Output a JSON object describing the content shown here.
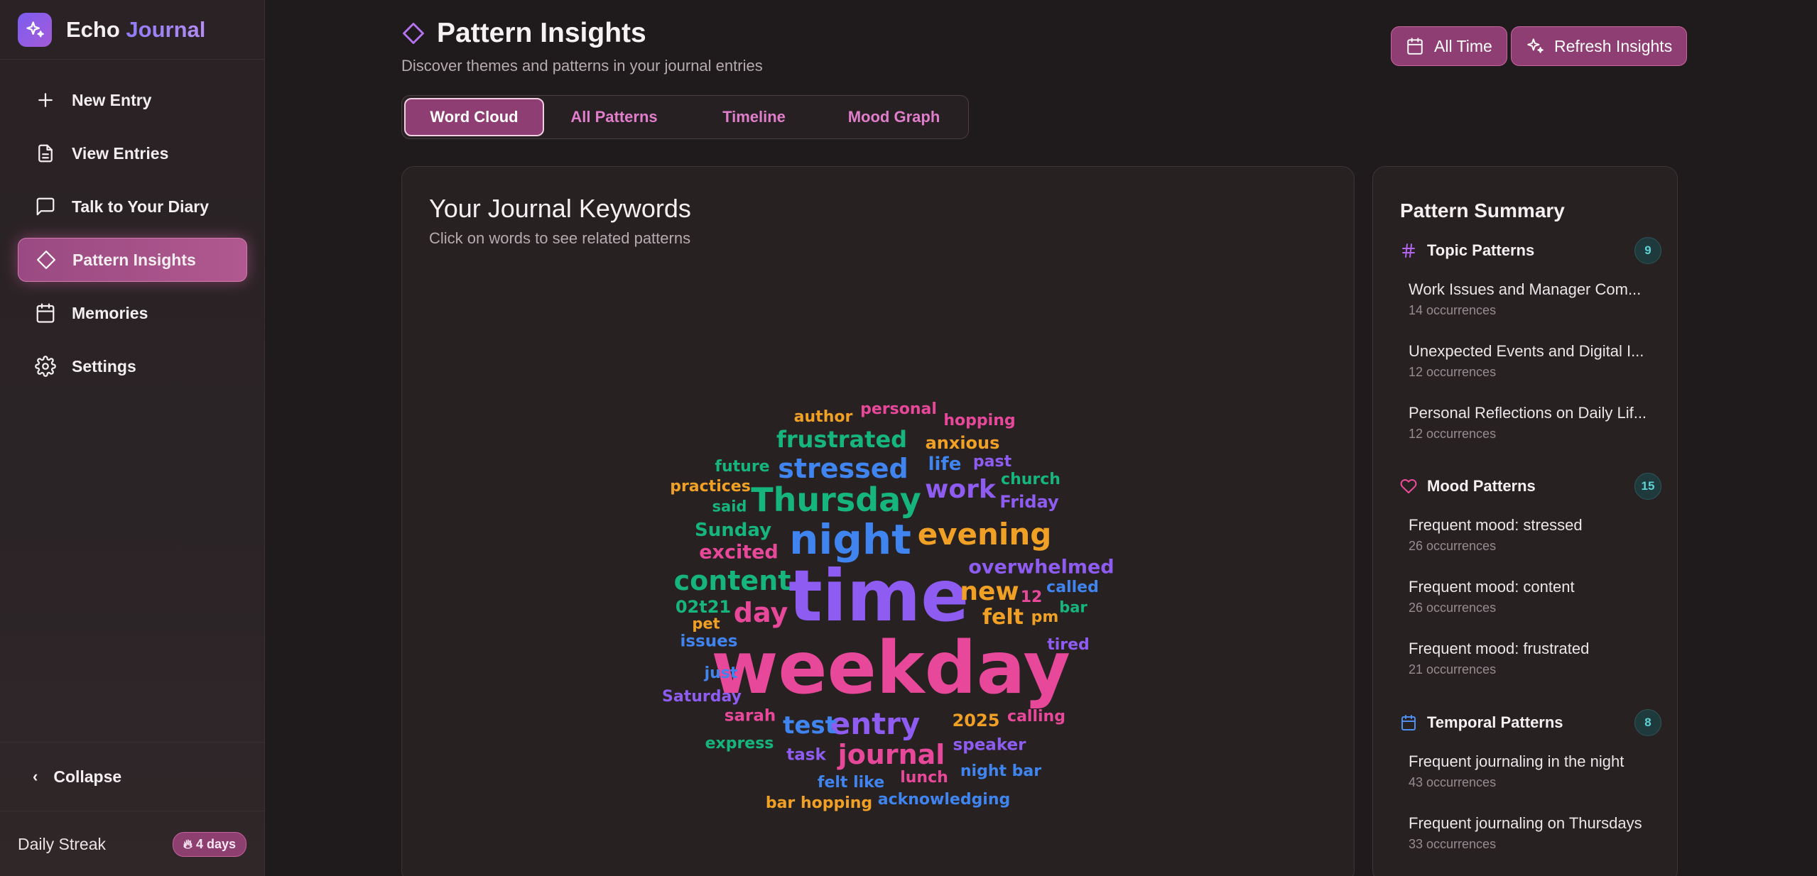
{
  "brand": {
    "name_primary": "Echo",
    "name_accent": "Journal"
  },
  "nav": {
    "items": [
      {
        "label": "New Entry",
        "icon": "plus-icon"
      },
      {
        "label": "View Entries",
        "icon": "file-text-icon"
      },
      {
        "label": "Talk to Your Diary",
        "icon": "chat-bubble-icon"
      },
      {
        "label": "Pattern Insights",
        "icon": "diamond-icon",
        "active": true
      },
      {
        "label": "Memories",
        "icon": "calendar-icon"
      },
      {
        "label": "Settings",
        "icon": "gear-icon"
      }
    ],
    "collapse_label": "Collapse",
    "streak_label": "Daily Streak",
    "streak_value": "4 days"
  },
  "header": {
    "title": "Pattern Insights",
    "subtitle": "Discover themes and patterns in your journal entries",
    "all_time_label": "All Time",
    "refresh_label": "Refresh Insights"
  },
  "tabs": [
    {
      "label": "Word Cloud",
      "active": true
    },
    {
      "label": "All Patterns"
    },
    {
      "label": "Timeline"
    },
    {
      "label": "Mood Graph"
    }
  ],
  "keywords": {
    "title": "Your Journal Keywords",
    "subtitle": "Click on words to see related patterns",
    "words": [
      {
        "text": "weekday",
        "color": "#e8489a"
      },
      {
        "text": "time",
        "color": "#8e5cf1"
      },
      {
        "text": "night",
        "color": "#3f84ef"
      },
      {
        "text": "Thursday",
        "color": "#16b57d"
      },
      {
        "text": "evening",
        "color": "#f0a024"
      },
      {
        "text": "stressed",
        "color": "#3f84ef"
      },
      {
        "text": "frustrated",
        "color": "#16b57d"
      },
      {
        "text": "work",
        "color": "#8e5cf1"
      },
      {
        "text": "content",
        "color": "#16b57d"
      },
      {
        "text": "entry",
        "color": "#8e5cf1"
      },
      {
        "text": "journal",
        "color": "#e8489a"
      },
      {
        "text": "day",
        "color": "#e8489a"
      },
      {
        "text": "new",
        "color": "#f0a024"
      },
      {
        "text": "test",
        "color": "#3f84ef"
      },
      {
        "text": "felt",
        "color": "#f0a024"
      },
      {
        "text": "overwhelmed",
        "color": "#8e5cf1"
      },
      {
        "text": "excited",
        "color": "#e8489a"
      },
      {
        "text": "Sunday",
        "color": "#16b57d"
      },
      {
        "text": "anxious",
        "color": "#f0a024"
      },
      {
        "text": "life",
        "color": "#3f84ef"
      },
      {
        "text": "Friday",
        "color": "#8e5cf1"
      },
      {
        "text": "2025",
        "color": "#f0a024"
      },
      {
        "text": "02t21",
        "color": "#16b57d"
      },
      {
        "text": "author",
        "color": "#f0a024"
      },
      {
        "text": "personal",
        "color": "#e8489a"
      },
      {
        "text": "hopping",
        "color": "#e8489a"
      },
      {
        "text": "future",
        "color": "#16b57d"
      },
      {
        "text": "past",
        "color": "#8e5cf1"
      },
      {
        "text": "church",
        "color": "#16b57d"
      },
      {
        "text": "practices",
        "color": "#f0a024"
      },
      {
        "text": "said",
        "color": "#16b57d"
      },
      {
        "text": "12",
        "color": "#e8489a"
      },
      {
        "text": "called",
        "color": "#3f84ef"
      },
      {
        "text": "bar",
        "color": "#16b57d"
      },
      {
        "text": "pm",
        "color": "#f0a024"
      },
      {
        "text": "pet",
        "color": "#f0a024"
      },
      {
        "text": "issues",
        "color": "#3f84ef"
      },
      {
        "text": "tired",
        "color": "#8e5cf1"
      },
      {
        "text": "just",
        "color": "#3f84ef"
      },
      {
        "text": "Saturday",
        "color": "#8e5cf1"
      },
      {
        "text": "sarah",
        "color": "#e8489a"
      },
      {
        "text": "calling",
        "color": "#e8489a"
      },
      {
        "text": "express",
        "color": "#16b57d"
      },
      {
        "text": "speaker",
        "color": "#8e5cf1"
      },
      {
        "text": "task",
        "color": "#8e5cf1"
      },
      {
        "text": "lunch",
        "color": "#e8489a"
      },
      {
        "text": "night bar",
        "color": "#3f84ef"
      },
      {
        "text": "felt like",
        "color": "#3f84ef"
      },
      {
        "text": "acknowledging",
        "color": "#3f84ef"
      },
      {
        "text": "bar hopping",
        "color": "#f0a024"
      }
    ]
  },
  "summary": {
    "title": "Pattern Summary",
    "sections": [
      {
        "label": "Topic Patterns",
        "icon": "hash-icon",
        "count": "9",
        "items": [
          {
            "title": "Work Issues and Manager Com...",
            "sub": "14 occurrences"
          },
          {
            "title": "Unexpected Events and Digital I...",
            "sub": "12 occurrences"
          },
          {
            "title": "Personal Reflections on Daily Lif...",
            "sub": "12 occurrences"
          }
        ]
      },
      {
        "label": "Mood Patterns",
        "icon": "heart-icon",
        "count": "15",
        "items": [
          {
            "title": "Frequent mood: stressed",
            "sub": "26 occurrences"
          },
          {
            "title": "Frequent mood: content",
            "sub": "26 occurrences"
          },
          {
            "title": "Frequent mood: frustrated",
            "sub": "21 occurrences"
          }
        ]
      },
      {
        "label": "Temporal Patterns",
        "icon": "calendar-icon",
        "count": "8",
        "items": [
          {
            "title": "Frequent journaling in the night",
            "sub": "43 occurrences"
          },
          {
            "title": "Frequent journaling on Thursdays",
            "sub": "33 occurrences"
          }
        ]
      }
    ]
  }
}
